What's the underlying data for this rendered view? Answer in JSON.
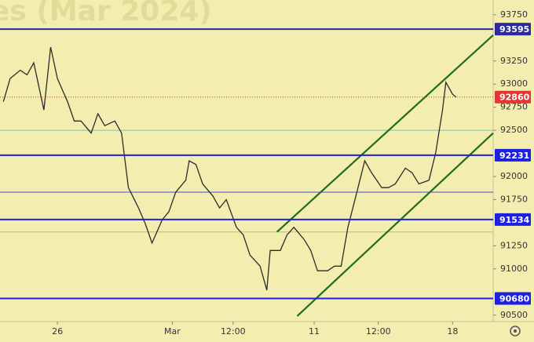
{
  "chart_data": {
    "type": "line",
    "watermark": "es (Mar 2024)",
    "x": [
      1,
      3,
      6,
      8,
      10,
      13,
      15,
      17,
      20,
      22,
      24,
      27,
      29,
      31,
      34,
      36,
      38,
      41,
      43,
      45,
      48,
      50,
      52,
      55,
      56,
      58,
      60,
      63,
      65,
      67,
      70,
      72,
      74,
      77,
      79,
      80,
      83,
      85,
      87,
      90,
      92,
      94,
      97,
      99,
      101,
      103,
      106,
      108,
      110,
      113,
      115,
      117,
      120,
      122,
      124,
      127,
      129,
      131,
      132,
      134,
      135
    ],
    "values": [
      92810,
      93060,
      93150,
      93100,
      93230,
      92720,
      93400,
      93060,
      92810,
      92600,
      92600,
      92470,
      92680,
      92550,
      92600,
      92470,
      91880,
      91660,
      91490,
      91280,
      91530,
      91620,
      91830,
      91960,
      92170,
      92130,
      91920,
      91790,
      91660,
      91750,
      91450,
      91370,
      91150,
      91030,
      90770,
      91200,
      91200,
      91370,
      91450,
      91320,
      91200,
      90980,
      90980,
      91030,
      91030,
      91450,
      91880,
      92170,
      92040,
      91880,
      91880,
      91920,
      92090,
      92040,
      91920,
      91960,
      92260,
      92720,
      93020,
      92890,
      92860
    ],
    "color": "#2b2b2b",
    "xlim": [
      0,
      146
    ],
    "xticks": [
      {
        "value": 17,
        "label": "26"
      },
      {
        "value": 51,
        "label": "Mar"
      },
      {
        "value": 69,
        "label": "12:00"
      },
      {
        "value": 93,
        "label": "11"
      },
      {
        "value": 112,
        "label": "12:00"
      },
      {
        "value": 134,
        "label": "18"
      }
    ],
    "ylim": [
      90430,
      93910
    ],
    "yticks": [
      93750,
      93250,
      93000,
      92750,
      92500,
      92000,
      91750,
      91250,
      91000,
      90500
    ],
    "levels": [
      {
        "value": 93595,
        "color": "#2c2a9c"
      },
      {
        "value": 92231,
        "color": "#1f1fe0"
      },
      {
        "value": 91534,
        "color": "#1f1fe0"
      },
      {
        "value": 90680,
        "color": "#1f1fe0"
      }
    ],
    "last_price": {
      "value": 92860,
      "color": "#e53535"
    },
    "lines": [
      {
        "value": 92500,
        "color": "#78c8a0"
      },
      {
        "value": 91830,
        "color": "#4a4ae0"
      },
      {
        "value": 91400,
        "color": "#a8cc58"
      }
    ],
    "channels": [
      {
        "x": [
          82,
          146
        ],
        "y": [
          91400,
          93530
        ],
        "color": "#1e6e1e"
      },
      {
        "x": [
          88,
          146
        ],
        "y": [
          90490,
          92470
        ],
        "color": "#1e6e1e"
      }
    ]
  }
}
